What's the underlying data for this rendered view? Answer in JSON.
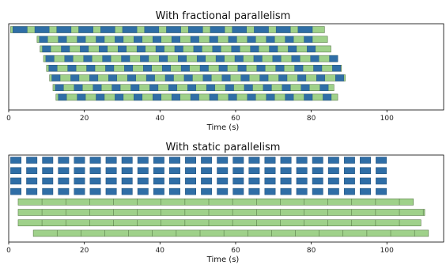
{
  "chart_data": [
    {
      "type": "gantt",
      "title": "With fractional parallelism",
      "xlabel": "Time (s)",
      "ylabel": "",
      "xlim": [
        0,
        115
      ],
      "xticks": [
        0,
        20,
        40,
        60,
        80,
        100
      ],
      "grid": false,
      "colors": {
        "compute": "#9fd18a",
        "communication": "#2f6ea6",
        "border": "#1f4f7a"
      },
      "rows": [
        {
          "start": 0.5,
          "end": 83.5,
          "period": 5.8,
          "gap": 3.8
        },
        {
          "start": 7.5,
          "end": 84.3,
          "period": 5.0,
          "gap": 2.2
        },
        {
          "start": 8.3,
          "end": 85.2,
          "period": 5.0,
          "gap": 2.2
        },
        {
          "start": 9.2,
          "end": 87.0,
          "period": 5.0,
          "gap": 2.2
        },
        {
          "start": 10.0,
          "end": 88.0,
          "period": 5.0,
          "gap": 2.2
        },
        {
          "start": 10.8,
          "end": 89.0,
          "period": 5.0,
          "gap": 2.2
        },
        {
          "start": 11.7,
          "end": 86.0,
          "period": 5.0,
          "gap": 2.2
        },
        {
          "start": 12.5,
          "end": 87.0,
          "period": 5.0,
          "gap": 2.2
        }
      ]
    },
    {
      "type": "gantt",
      "title": "With static parallelism",
      "xlabel": "Time (s)",
      "ylabel": "",
      "xlim": [
        0,
        115
      ],
      "xticks": [
        0,
        20,
        40,
        60,
        80,
        100
      ],
      "grid": false,
      "colors": {
        "compute": "#9fd18a",
        "communication": "#2f6ea6",
        "border": "#1f4f7a"
      },
      "rows": [
        {
          "start": 0.5,
          "end": 103.0,
          "style": "blue-blocks",
          "period": 4.2,
          "block": 2.8
        },
        {
          "start": 0.5,
          "end": 100.0,
          "style": "blue-blocks",
          "period": 4.2,
          "block": 2.8
        },
        {
          "start": 0.5,
          "end": 100.0,
          "style": "blue-blocks",
          "period": 4.2,
          "block": 2.8
        },
        {
          "start": 0.5,
          "end": 101.0,
          "style": "blue-blocks",
          "period": 4.2,
          "block": 2.8
        },
        {
          "start": 2.5,
          "end": 107.0,
          "style": "green-segments",
          "period": 6.3
        },
        {
          "start": 2.5,
          "end": 110.0,
          "style": "green-segments",
          "period": 6.3
        },
        {
          "start": 2.5,
          "end": 109.0,
          "style": "green-segments",
          "period": 6.3
        },
        {
          "start": 6.5,
          "end": 111.0,
          "style": "green-segments",
          "period": 6.3
        }
      ]
    }
  ]
}
